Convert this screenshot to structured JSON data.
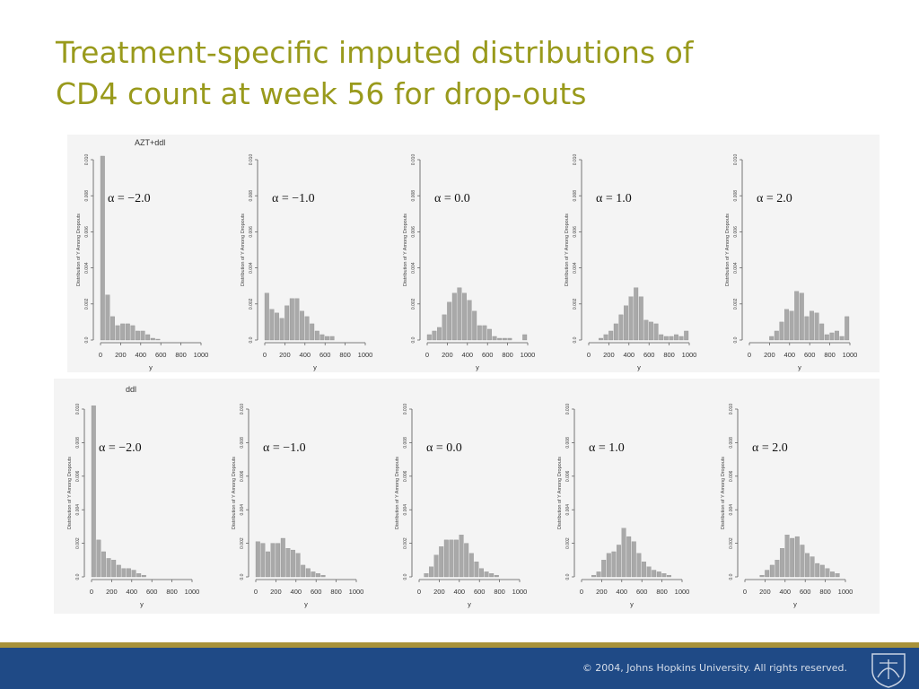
{
  "slide": {
    "title_lines": [
      "Treatment-specific imputed distributions of",
      "CD4 count at week 56 for drop-outs"
    ],
    "copyright": "© 2004, Johns Hopkins University. All rights reserved.",
    "logo_icon": "jhu-shield-icon"
  },
  "colors": {
    "title": "#999a1c",
    "bar": "#a9a9a9",
    "footer": "#1f4a86",
    "footer_band": "#a8923a"
  },
  "chart_data": [
    {
      "type": "bar",
      "row": 0,
      "group_label": "AZT+ddl",
      "annotation": "α = −2.0",
      "ylabel": "Distribution of Y Among Dropouts",
      "xlabel": "y",
      "xlim": [
        0,
        1000
      ],
      "ylim": [
        0,
        0.01
      ],
      "xticks": [
        0,
        200,
        400,
        600,
        800,
        1000
      ],
      "yticks": [
        "0.0",
        "0.002",
        "0.004",
        "0.006",
        "0.008",
        "0.010"
      ],
      "bin_width": 50,
      "bin_starts": [
        0,
        50,
        100,
        150,
        200,
        250,
        300,
        350,
        400,
        450,
        500,
        550
      ],
      "values": [
        0.0103,
        0.0025,
        0.0013,
        0.0008,
        0.0009,
        0.0009,
        0.0008,
        0.0005,
        0.0005,
        0.0003,
        0.0001,
        5e-05
      ]
    },
    {
      "type": "bar",
      "row": 0,
      "group_label": "",
      "annotation": "α = −1.0",
      "ylabel": "Distribution of Y Among Dropouts",
      "xlabel": "y",
      "xlim": [
        0,
        1000
      ],
      "ylim": [
        0,
        0.01
      ],
      "xticks": [
        0,
        200,
        400,
        600,
        800,
        1000
      ],
      "yticks": [
        "0.0",
        "0.002",
        "0.004",
        "0.006",
        "0.008",
        "0.010"
      ],
      "bin_width": 50,
      "bin_starts": [
        0,
        50,
        100,
        150,
        200,
        250,
        300,
        350,
        400,
        450,
        500,
        550,
        600,
        650
      ],
      "values": [
        0.0026,
        0.0017,
        0.0015,
        0.0012,
        0.0019,
        0.0023,
        0.0023,
        0.0016,
        0.0013,
        0.0009,
        0.0005,
        0.0003,
        0.0002,
        0.0002
      ]
    },
    {
      "type": "bar",
      "row": 0,
      "group_label": "",
      "annotation": "α = 0.0",
      "ylabel": "Distribution of Y Among Dropouts",
      "xlabel": "y",
      "xlim": [
        0,
        1000
      ],
      "ylim": [
        0,
        0.01
      ],
      "xticks": [
        0,
        200,
        400,
        600,
        800,
        1000
      ],
      "yticks": [
        "0.0",
        "0.002",
        "0.004",
        "0.006",
        "0.008",
        "0.010"
      ],
      "bin_width": 50,
      "bin_starts": [
        0,
        50,
        100,
        150,
        200,
        250,
        300,
        350,
        400,
        450,
        500,
        550,
        600,
        650,
        700,
        750,
        800,
        850,
        900,
        950
      ],
      "values": [
        0.0003,
        0.0005,
        0.0007,
        0.0014,
        0.0021,
        0.0026,
        0.0029,
        0.0026,
        0.0022,
        0.0016,
        0.0008,
        0.0008,
        0.0006,
        0.0002,
        0.0001,
        0.0001,
        0.0001,
        0,
        0,
        0.0003
      ]
    },
    {
      "type": "bar",
      "row": 0,
      "group_label": "",
      "annotation": "α = 1.0",
      "ylabel": "Distribution of Y Among Dropouts",
      "xlabel": "y",
      "xlim": [
        0,
        1000
      ],
      "ylim": [
        0,
        0.01
      ],
      "xticks": [
        0,
        200,
        400,
        600,
        800,
        1000
      ],
      "yticks": [
        "0.0",
        "0.002",
        "0.004",
        "0.006",
        "0.008",
        "0.010"
      ],
      "bin_width": 50,
      "bin_starts": [
        100,
        150,
        200,
        250,
        300,
        350,
        400,
        450,
        500,
        550,
        600,
        650,
        700,
        750,
        800,
        850,
        900,
        950
      ],
      "values": [
        0.0001,
        0.0003,
        0.0005,
        0.0009,
        0.0014,
        0.0019,
        0.0024,
        0.0029,
        0.0024,
        0.0011,
        0.001,
        0.0009,
        0.0003,
        0.0002,
        0.0002,
        0.0003,
        0.0002,
        0.0005
      ]
    },
    {
      "type": "bar",
      "row": 0,
      "group_label": "",
      "annotation": "α = 2.0",
      "ylabel": "Distribution of Y Among Dropouts",
      "xlabel": "y",
      "xlim": [
        0,
        1000
      ],
      "ylim": [
        0,
        0.01
      ],
      "xticks": [
        0,
        200,
        400,
        600,
        800,
        1000
      ],
      "yticks": [
        "0.0",
        "0.002",
        "0.004",
        "0.006",
        "0.008",
        "0.010"
      ],
      "bin_width": 50,
      "bin_starts": [
        200,
        250,
        300,
        350,
        400,
        450,
        500,
        550,
        600,
        650,
        700,
        750,
        800,
        850,
        900,
        950
      ],
      "values": [
        0.0002,
        0.0005,
        0.001,
        0.0017,
        0.0016,
        0.0027,
        0.0026,
        0.0013,
        0.0016,
        0.0015,
        0.0009,
        0.0003,
        0.0004,
        0.0005,
        0.0002,
        0.0013
      ]
    },
    {
      "type": "bar",
      "row": 1,
      "group_label": "ddl",
      "annotation": "α = −2.0",
      "ylabel": "Distribution of Y Among Dropouts",
      "xlabel": "y",
      "xlim": [
        0,
        1000
      ],
      "ylim": [
        0,
        0.01
      ],
      "xticks": [
        0,
        200,
        400,
        600,
        800,
        1000
      ],
      "yticks": [
        "0.0",
        "0.002",
        "0.004",
        "0.006",
        "0.008",
        "0.010"
      ],
      "bin_width": 50,
      "bin_starts": [
        0,
        50,
        100,
        150,
        200,
        250,
        300,
        350,
        400,
        450,
        500
      ],
      "values": [
        0.0102,
        0.0022,
        0.0015,
        0.0011,
        0.001,
        0.0007,
        0.0005,
        0.0005,
        0.0004,
        0.0002,
        0.0001
      ]
    },
    {
      "type": "bar",
      "row": 1,
      "group_label": "",
      "annotation": "α = −1.0",
      "ylabel": "Distribution of Y Among Dropouts",
      "xlabel": "y",
      "xlim": [
        0,
        1000
      ],
      "ylim": [
        0,
        0.01
      ],
      "xticks": [
        0,
        200,
        400,
        600,
        800,
        1000
      ],
      "yticks": [
        "0.0",
        "0.002",
        "0.004",
        "0.006",
        "0.008",
        "0.010"
      ],
      "bin_width": 50,
      "bin_starts": [
        0,
        50,
        100,
        150,
        200,
        250,
        300,
        350,
        400,
        450,
        500,
        550,
        600,
        650
      ],
      "values": [
        0.0021,
        0.002,
        0.0015,
        0.002,
        0.002,
        0.0023,
        0.0017,
        0.0016,
        0.0014,
        0.0007,
        0.0005,
        0.0003,
        0.0002,
        0.0001
      ]
    },
    {
      "type": "bar",
      "row": 1,
      "group_label": "",
      "annotation": "α = 0.0",
      "ylabel": "Distribution of Y Among Dropouts",
      "xlabel": "y",
      "xlim": [
        0,
        1000
      ],
      "ylim": [
        0,
        0.01
      ],
      "xticks": [
        0,
        200,
        400,
        600,
        800,
        1000
      ],
      "yticks": [
        "0.0",
        "0.002",
        "0.004",
        "0.006",
        "0.008",
        "0.010"
      ],
      "bin_width": 50,
      "bin_starts": [
        50,
        100,
        150,
        200,
        250,
        300,
        350,
        400,
        450,
        500,
        550,
        600,
        650,
        700,
        750
      ],
      "values": [
        0.0002,
        0.0006,
        0.0013,
        0.0018,
        0.0022,
        0.0022,
        0.0022,
        0.0025,
        0.002,
        0.0014,
        0.0009,
        0.0005,
        0.0003,
        0.0002,
        0.0001
      ]
    },
    {
      "type": "bar",
      "row": 1,
      "group_label": "",
      "annotation": "α = 1.0",
      "ylabel": "Distribution of Y Among Dropouts",
      "xlabel": "y",
      "xlim": [
        0,
        1000
      ],
      "ylim": [
        0,
        0.01
      ],
      "xticks": [
        0,
        200,
        400,
        600,
        800,
        1000
      ],
      "yticks": [
        "0.0",
        "0.002",
        "0.004",
        "0.006",
        "0.008",
        "0.010"
      ],
      "bin_width": 50,
      "bin_starts": [
        100,
        150,
        200,
        250,
        300,
        350,
        400,
        450,
        500,
        550,
        600,
        650,
        700,
        750,
        800,
        850
      ],
      "values": [
        0.0001,
        0.0003,
        0.001,
        0.0014,
        0.0015,
        0.0019,
        0.0029,
        0.0024,
        0.0021,
        0.0014,
        0.0009,
        0.0006,
        0.0004,
        0.0003,
        0.0002,
        0.0001
      ]
    },
    {
      "type": "bar",
      "row": 1,
      "group_label": "",
      "annotation": "α = 2.0",
      "ylabel": "Distribution of Y Among Dropouts",
      "xlabel": "y",
      "xlim": [
        0,
        1000
      ],
      "ylim": [
        0,
        0.01
      ],
      "xticks": [
        0,
        200,
        400,
        600,
        800,
        1000
      ],
      "yticks": [
        "0.0",
        "0.002",
        "0.004",
        "0.006",
        "0.008",
        "0.010"
      ],
      "bin_width": 50,
      "bin_starts": [
        150,
        200,
        250,
        300,
        350,
        400,
        450,
        500,
        550,
        600,
        650,
        700,
        750,
        800,
        850,
        900
      ],
      "values": [
        0.0001,
        0.0004,
        0.0007,
        0.001,
        0.0017,
        0.0025,
        0.0023,
        0.0024,
        0.0019,
        0.0014,
        0.0012,
        0.0008,
        0.0007,
        0.0005,
        0.0003,
        0.0002
      ]
    }
  ]
}
